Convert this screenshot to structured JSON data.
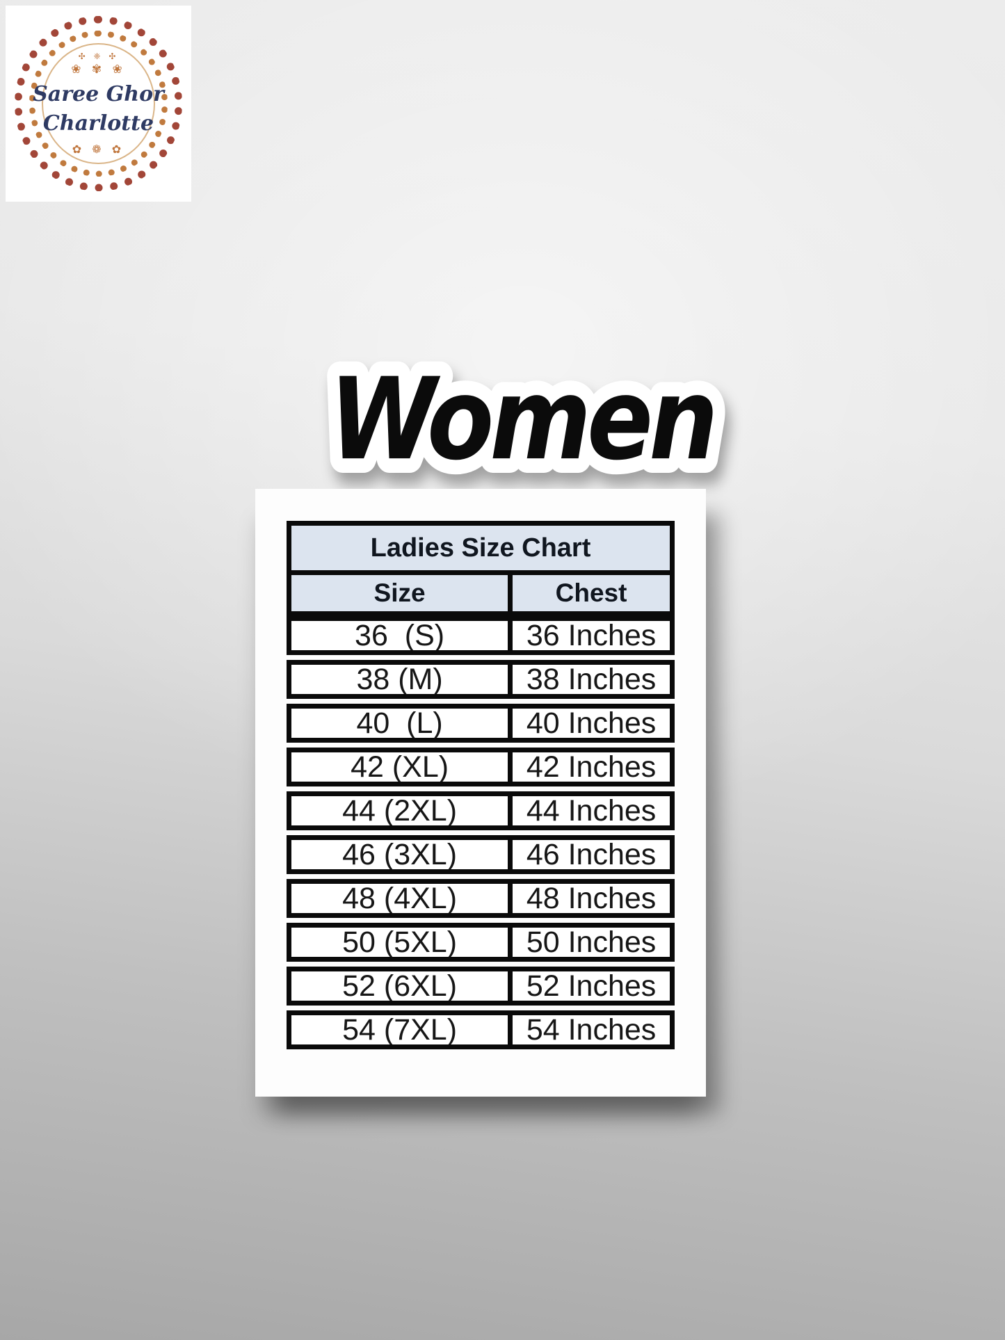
{
  "page": {
    "background_top_color": "#ececec",
    "background_bottom_color": "#a7a7a7"
  },
  "logo": {
    "brand_line1": "Saree Ghor",
    "brand_line2": "Charlotte",
    "text_color": "#2e3a63",
    "ring_outer_color": "#a24638",
    "ring_inner_color": "#c07a3e",
    "ornament_top": "✣ ❈ ✣",
    "ornament_mid": "❀ ✾ ❀",
    "ornament_bottom": "✿ ❁ ✿"
  },
  "heading": {
    "text": "Women",
    "fill_color": "#0b0b0b",
    "outline_color": "#ffffff"
  },
  "size_chart": {
    "title": "Ladies Size Chart",
    "header_bg_color": "#dce4ef",
    "border_color": "#0a0a0a",
    "columns": {
      "size": "Size",
      "chest": "Chest"
    },
    "rows": [
      {
        "size": "36  (S)",
        "chest": "36 Inches"
      },
      {
        "size": "38 (M)",
        "chest": "38 Inches"
      },
      {
        "size": "40  (L)",
        "chest": "40 Inches"
      },
      {
        "size": "42 (XL)",
        "chest": "42 Inches"
      },
      {
        "size": "44 (2XL)",
        "chest": "44 Inches"
      },
      {
        "size": "46 (3XL)",
        "chest": "46 Inches"
      },
      {
        "size": "48 (4XL)",
        "chest": "48 Inches"
      },
      {
        "size": "50 (5XL)",
        "chest": "50 Inches"
      },
      {
        "size": "52 (6XL)",
        "chest": "52 Inches"
      },
      {
        "size": "54 (7XL)",
        "chest": "54 Inches"
      }
    ]
  },
  "chart_data": {
    "type": "table",
    "title": "Ladies Size Chart",
    "columns": [
      "Size",
      "Chest"
    ],
    "rows": [
      [
        "36 (S)",
        "36 Inches"
      ],
      [
        "38 (M)",
        "38 Inches"
      ],
      [
        "40 (L)",
        "40 Inches"
      ],
      [
        "42 (XL)",
        "42 Inches"
      ],
      [
        "44 (2XL)",
        "44 Inches"
      ],
      [
        "46 (3XL)",
        "46 Inches"
      ],
      [
        "48 (4XL)",
        "48 Inches"
      ],
      [
        "50 (5XL)",
        "50 Inches"
      ],
      [
        "52 (6XL)",
        "52 Inches"
      ],
      [
        "54 (7XL)",
        "54 Inches"
      ]
    ]
  }
}
